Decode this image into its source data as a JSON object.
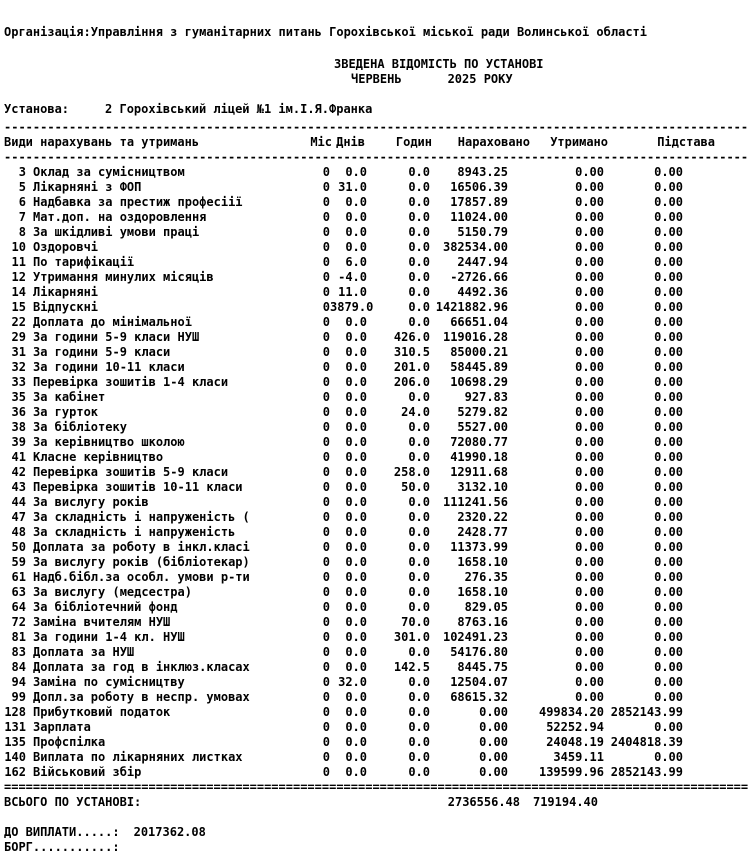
{
  "page": {
    "background": "#ffffff",
    "text_color": "#000000"
  },
  "header": {
    "organization_label": "Організація:",
    "organization": "Управління з гуманітарних питань Горохівської міської ради Волинської області",
    "report_title": "ЗВЕДЕНА ВІДОМІСТЬ ПО УСТАНОВІ",
    "month": "ЧЕРВЕНЬ",
    "year": "2025 РОКУ",
    "institution_label": "Установа:",
    "institution": "2 Горохівський ліцей №1 ім.І.Я.Франка"
  },
  "table": {
    "columns": {
      "name": "Види нарахувань та утримань",
      "mis": "Міс",
      "days": "Днів",
      "hours": "Годин",
      "accrued": "Нараховано",
      "withheld": "Утримано",
      "basis": "Підстава"
    },
    "rows": [
      [
        "3",
        "Оклад за сумісництвом",
        "0",
        "0.0",
        "0.0",
        "8943.25",
        "0.00",
        "0.00"
      ],
      [
        "5",
        "Лікарняні з ФОП",
        "0",
        "31.0",
        "0.0",
        "16506.39",
        "0.00",
        "0.00"
      ],
      [
        "6",
        "Надбавка за престиж професіії",
        "0",
        "0.0",
        "0.0",
        "17857.89",
        "0.00",
        "0.00"
      ],
      [
        "7",
        "Мат.доп. на оздоровлення",
        "0",
        "0.0",
        "0.0",
        "11024.00",
        "0.00",
        "0.00"
      ],
      [
        "8",
        "За шкідливі умови праці",
        "0",
        "0.0",
        "0.0",
        "5150.79",
        "0.00",
        "0.00"
      ],
      [
        "10",
        "Оздоровчі",
        "0",
        "0.0",
        "0.0",
        "382534.00",
        "0.00",
        "0.00"
      ],
      [
        "11",
        "По тарифікації",
        "0",
        "6.0",
        "0.0",
        "2447.94",
        "0.00",
        "0.00"
      ],
      [
        "12",
        "Утримання минулих місяців",
        "0",
        "-4.0",
        "0.0",
        "-2726.66",
        "0.00",
        "0.00"
      ],
      [
        "14",
        "Лікарняні",
        "0",
        "11.0",
        "0.0",
        "4492.36",
        "0.00",
        "0.00"
      ],
      [
        "15",
        "Відпускні",
        "0",
        "3879.0",
        "0.0",
        "1421882.96",
        "0.00",
        "0.00"
      ],
      [
        "22",
        "Доплата до мінімальної",
        "0",
        "0.0",
        "0.0",
        "66651.04",
        "0.00",
        "0.00"
      ],
      [
        "29",
        "За години 5-9 класи НУШ",
        "0",
        "0.0",
        "426.0",
        "119016.28",
        "0.00",
        "0.00"
      ],
      [
        "31",
        "За години 5-9 класи",
        "0",
        "0.0",
        "310.5",
        "85000.21",
        "0.00",
        "0.00"
      ],
      [
        "32",
        "За години 10-11 класи",
        "0",
        "0.0",
        "201.0",
        "58445.89",
        "0.00",
        "0.00"
      ],
      [
        "33",
        "Перевірка зошитів 1-4 класи",
        "0",
        "0.0",
        "206.0",
        "10698.29",
        "0.00",
        "0.00"
      ],
      [
        "35",
        "За кабінет",
        "0",
        "0.0",
        "0.0",
        "927.83",
        "0.00",
        "0.00"
      ],
      [
        "36",
        "За гурток",
        "0",
        "0.0",
        "24.0",
        "5279.82",
        "0.00",
        "0.00"
      ],
      [
        "38",
        "За бібліотеку",
        "0",
        "0.0",
        "0.0",
        "5527.00",
        "0.00",
        "0.00"
      ],
      [
        "39",
        "За керівництво школою",
        "0",
        "0.0",
        "0.0",
        "72080.77",
        "0.00",
        "0.00"
      ],
      [
        "41",
        "Класне керівництво",
        "0",
        "0.0",
        "0.0",
        "41990.18",
        "0.00",
        "0.00"
      ],
      [
        "42",
        "Перевірка зошитів 5-9 класи",
        "0",
        "0.0",
        "258.0",
        "12911.68",
        "0.00",
        "0.00"
      ],
      [
        "43",
        "Перевірка зошитів 10-11 класи",
        "0",
        "0.0",
        "50.0",
        "3132.10",
        "0.00",
        "0.00"
      ],
      [
        "44",
        "За вислугу років",
        "0",
        "0.0",
        "0.0",
        "111241.56",
        "0.00",
        "0.00"
      ],
      [
        "47",
        "За складність і напруженість (",
        "0",
        "0.0",
        "0.0",
        "2320.22",
        "0.00",
        "0.00"
      ],
      [
        "48",
        "За складність і напруженість",
        "0",
        "0.0",
        "0.0",
        "2428.77",
        "0.00",
        "0.00"
      ],
      [
        "50",
        "Доплата за роботу в інкл.класі",
        "0",
        "0.0",
        "0.0",
        "11373.99",
        "0.00",
        "0.00"
      ],
      [
        "59",
        "За вислугу років (бібліотекар)",
        "0",
        "0.0",
        "0.0",
        "1658.10",
        "0.00",
        "0.00"
      ],
      [
        "61",
        "Надб.бібл.за особл. умови р-ти",
        "0",
        "0.0",
        "0.0",
        "276.35",
        "0.00",
        "0.00"
      ],
      [
        "63",
        "За вислугу (медсестра)",
        "0",
        "0.0",
        "0.0",
        "1658.10",
        "0.00",
        "0.00"
      ],
      [
        "64",
        "За бібліотечний фонд",
        "0",
        "0.0",
        "0.0",
        "829.05",
        "0.00",
        "0.00"
      ],
      [
        "72",
        "Заміна вчителям НУШ",
        "0",
        "0.0",
        "70.0",
        "8763.16",
        "0.00",
        "0.00"
      ],
      [
        "81",
        "За години 1-4 кл. НУШ",
        "0",
        "0.0",
        "301.0",
        "102491.23",
        "0.00",
        "0.00"
      ],
      [
        "83",
        "Доплата за НУШ",
        "0",
        "0.0",
        "0.0",
        "54176.80",
        "0.00",
        "0.00"
      ],
      [
        "84",
        "Доплата за год в інклюз.класах",
        "0",
        "0.0",
        "142.5",
        "8445.75",
        "0.00",
        "0.00"
      ],
      [
        "94",
        "Заміна по сумісництву",
        "0",
        "32.0",
        "0.0",
        "12504.07",
        "0.00",
        "0.00"
      ],
      [
        "99",
        "Допл.за роботу в неспр. умовах",
        "0",
        "0.0",
        "0.0",
        "68615.32",
        "0.00",
        "0.00"
      ],
      [
        "128",
        "Прибутковий податок",
        "0",
        "0.0",
        "0.0",
        "0.00",
        "499834.20",
        "2852143.99"
      ],
      [
        "131",
        "Зарплата",
        "0",
        "0.0",
        "0.0",
        "0.00",
        "52252.94",
        "0.00"
      ],
      [
        "135",
        "Профспілка",
        "0",
        "0.0",
        "0.0",
        "0.00",
        "24048.19",
        "2404818.39"
      ],
      [
        "140",
        "Виплата по лікарняних листках",
        "0",
        "0.0",
        "0.0",
        "0.00",
        "3459.11",
        "0.00"
      ],
      [
        "162",
        "Військовий збір",
        "0",
        "0.0",
        "0.0",
        "0.00",
        "139599.96",
        "2852143.99"
      ]
    ]
  },
  "totals": {
    "label": "ВСЬОГО ПО УСТАНОВІ:",
    "accrued": "2736556.48",
    "withheld": "719194.40"
  },
  "footer": {
    "to_pay_label": "ДО ВИПЛАТИ.....:",
    "to_pay_value": "2017362.08",
    "debt_label": "БОРГ...........:",
    "debt_value": ""
  }
}
